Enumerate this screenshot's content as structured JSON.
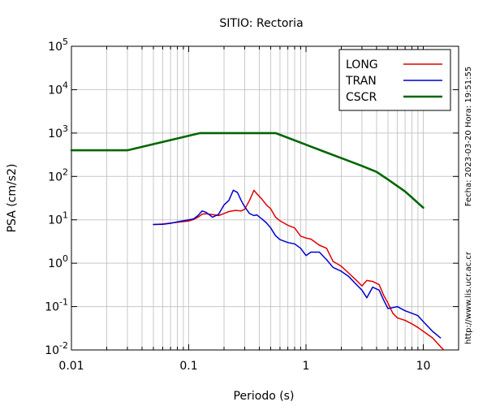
{
  "chart_data": {
    "type": "line",
    "title": "SITIO: Rectoria",
    "xlabel": "Periodo (s)",
    "ylabel": "PSA (cm/s2)",
    "x_scale": "log",
    "y_scale": "log",
    "xlim": [
      0.01,
      20
    ],
    "ylim": [
      0.01,
      100000
    ],
    "grid": true,
    "legend_position": "top-right",
    "x_ticks": [
      {
        "value": 0.01,
        "label": "0.01"
      },
      {
        "value": 0.1,
        "label": "0.1"
      },
      {
        "value": 1,
        "label": "1"
      },
      {
        "value": 10,
        "label": "10"
      }
    ],
    "y_ticks": [
      {
        "value": 0.01,
        "base": "10",
        "exp": "-2"
      },
      {
        "value": 0.1,
        "base": "10",
        "exp": "-1"
      },
      {
        "value": 1,
        "base": "10",
        "exp": "0"
      },
      {
        "value": 10,
        "base": "10",
        "exp": "1"
      },
      {
        "value": 100,
        "base": "10",
        "exp": "2"
      },
      {
        "value": 1000,
        "base": "10",
        "exp": "3"
      },
      {
        "value": 10000,
        "base": "10",
        "exp": "4"
      },
      {
        "value": 100000,
        "base": "10",
        "exp": "5"
      }
    ],
    "series": [
      {
        "name": "LONG",
        "color": "#e00000",
        "width": 1.5,
        "x": [
          0.05,
          0.06,
          0.07,
          0.08,
          0.09,
          0.1,
          0.11,
          0.12,
          0.13,
          0.14,
          0.16,
          0.18,
          0.2,
          0.22,
          0.25,
          0.28,
          0.3,
          0.33,
          0.36,
          0.38,
          0.42,
          0.46,
          0.5,
          0.55,
          0.6,
          0.7,
          0.8,
          0.9,
          1.0,
          1.1,
          1.3,
          1.5,
          1.7,
          2.0,
          2.3,
          2.7,
          3.0,
          3.3,
          3.7,
          4.2,
          4.6,
          5.0,
          5.5,
          6.0,
          7.0,
          8.0,
          9.0,
          10,
          12,
          14,
          15
        ],
        "y": [
          7.8,
          8.0,
          8.4,
          8.8,
          9.1,
          9.4,
          10.2,
          11.5,
          13.5,
          13.8,
          13.2,
          12.5,
          14,
          15.5,
          16.5,
          16,
          17.5,
          28,
          48,
          40,
          30,
          22,
          18,
          11.5,
          9.5,
          7.5,
          6.5,
          4.2,
          3.8,
          3.6,
          2.6,
          2.2,
          1.1,
          0.85,
          0.6,
          0.4,
          0.3,
          0.4,
          0.38,
          0.32,
          0.18,
          0.12,
          0.07,
          0.055,
          0.048,
          0.04,
          0.033,
          0.027,
          0.019,
          0.012,
          0.01
        ]
      },
      {
        "name": "TRAN",
        "color": "#0000d0",
        "width": 1.5,
        "x": [
          0.05,
          0.06,
          0.07,
          0.08,
          0.09,
          0.1,
          0.11,
          0.12,
          0.13,
          0.14,
          0.16,
          0.18,
          0.2,
          0.22,
          0.24,
          0.26,
          0.28,
          0.3,
          0.33,
          0.36,
          0.38,
          0.42,
          0.46,
          0.5,
          0.55,
          0.6,
          0.7,
          0.8,
          0.9,
          1.0,
          1.1,
          1.3,
          1.5,
          1.7,
          2.0,
          2.3,
          2.7,
          3.0,
          3.3,
          3.7,
          4.2,
          4.6,
          5.0,
          5.5,
          6.0,
          7.0,
          8.0,
          9.0,
          10,
          12,
          14
        ],
        "y": [
          7.8,
          7.9,
          8.3,
          9.0,
          9.5,
          10.0,
          10.5,
          12.5,
          16,
          15,
          11.5,
          13.5,
          22,
          28,
          48,
          43,
          28,
          20,
          14,
          12.5,
          13,
          10.5,
          8.5,
          6.5,
          4.3,
          3.5,
          3.0,
          2.8,
          2.2,
          1.5,
          1.8,
          1.8,
          1.2,
          0.8,
          0.65,
          0.5,
          0.32,
          0.24,
          0.16,
          0.28,
          0.24,
          0.14,
          0.09,
          0.095,
          0.1,
          0.08,
          0.07,
          0.062,
          0.045,
          0.027,
          0.019
        ]
      },
      {
        "name": "CSCR",
        "color": "#006600",
        "width": 2.6,
        "x": [
          0.01,
          0.03,
          0.125,
          0.2,
          0.3,
          0.55,
          0.7,
          1.0,
          1.5,
          2.0,
          3.0,
          4.0,
          5.0,
          7.0,
          10
        ],
        "y": [
          400,
          400,
          1000,
          1000,
          1000,
          1000,
          780,
          540,
          355,
          265,
          175,
          127,
          85,
          45,
          19
        ]
      }
    ],
    "side_text": "Fecha: 2023-03-20 Hora: 19:51:55",
    "footer_text": "http://www.lis.ucr.ac.cr"
  }
}
